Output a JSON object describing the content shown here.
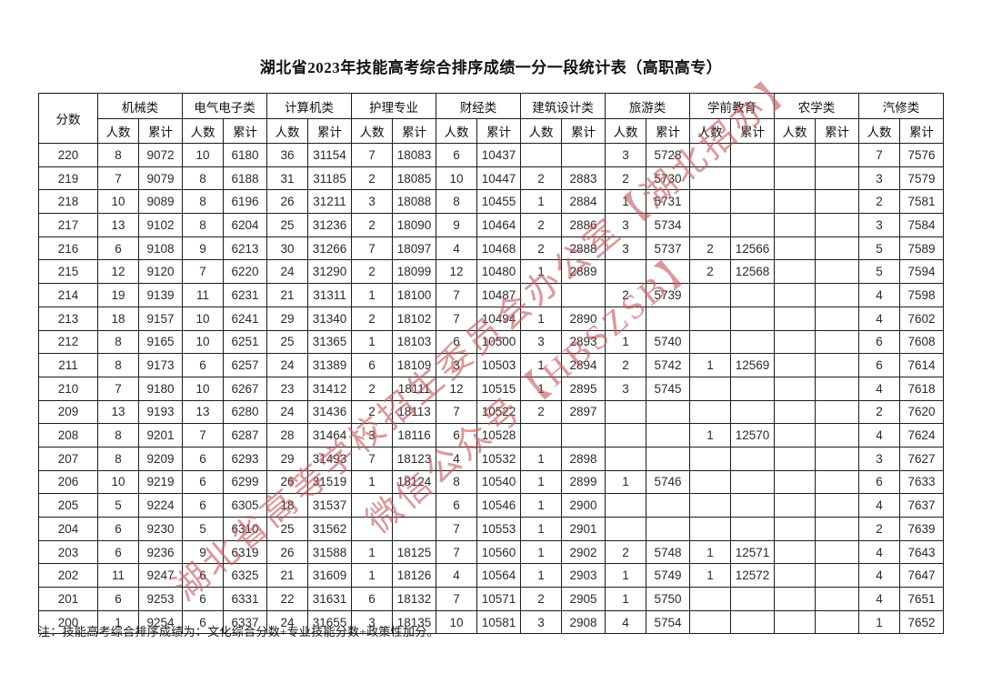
{
  "title": "湖北省2023年技能高考综合排序成绩一分一段统计表（高职高专）",
  "note": "注：技能高考综合排序成绩为：文化综合分数+专业技能分数+政策性加分。",
  "watermark": {
    "line1": "湖北省高等学校招生委员会办公室【湖北招办】",
    "line2": "微信公众号【HBSZSB】",
    "color": "#c4575a"
  },
  "table": {
    "score_header": "分数",
    "categories": [
      "机械类",
      "电气电子类",
      "计算机类",
      "护理专业",
      "财经类",
      "建筑设计类",
      "旅游类",
      "学前教育",
      "农学类",
      "汽修类"
    ],
    "subheaders": {
      "count": "人数",
      "cumulative": "累计"
    },
    "rows": [
      {
        "score": "220",
        "v": [
          "8",
          "9072",
          "10",
          "6180",
          "36",
          "31154",
          "7",
          "18083",
          "6",
          "10437",
          "",
          "",
          "3",
          "5728",
          "",
          "",
          "",
          "",
          "7",
          "7576"
        ]
      },
      {
        "score": "219",
        "v": [
          "7",
          "9079",
          "8",
          "6188",
          "31",
          "31185",
          "2",
          "18085",
          "10",
          "10447",
          "2",
          "2883",
          "2",
          "5730",
          "",
          "",
          "",
          "",
          "3",
          "7579"
        ]
      },
      {
        "score": "218",
        "v": [
          "10",
          "9089",
          "8",
          "6196",
          "26",
          "31211",
          "3",
          "18088",
          "8",
          "10455",
          "1",
          "2884",
          "1",
          "5731",
          "",
          "",
          "",
          "",
          "2",
          "7581"
        ]
      },
      {
        "score": "217",
        "v": [
          "13",
          "9102",
          "8",
          "6204",
          "25",
          "31236",
          "2",
          "18090",
          "9",
          "10464",
          "2",
          "2886",
          "3",
          "5734",
          "",
          "",
          "",
          "",
          "3",
          "7584"
        ]
      },
      {
        "score": "216",
        "v": [
          "6",
          "9108",
          "9",
          "6213",
          "30",
          "31266",
          "7",
          "18097",
          "4",
          "10468",
          "2",
          "2888",
          "3",
          "5737",
          "2",
          "12566",
          "",
          "",
          "5",
          "7589"
        ]
      },
      {
        "score": "215",
        "v": [
          "12",
          "9120",
          "7",
          "6220",
          "24",
          "31290",
          "2",
          "18099",
          "12",
          "10480",
          "1",
          "2889",
          "",
          "",
          "2",
          "12568",
          "",
          "",
          "5",
          "7594"
        ]
      },
      {
        "score": "214",
        "v": [
          "19",
          "9139",
          "11",
          "6231",
          "21",
          "31311",
          "1",
          "18100",
          "7",
          "10487",
          "",
          "",
          "2",
          "5739",
          "",
          "",
          "",
          "",
          "4",
          "7598"
        ]
      },
      {
        "score": "213",
        "v": [
          "18",
          "9157",
          "10",
          "6241",
          "29",
          "31340",
          "2",
          "18102",
          "7",
          "10494",
          "1",
          "2890",
          "",
          "",
          "",
          "",
          "",
          "",
          "4",
          "7602"
        ]
      },
      {
        "score": "212",
        "v": [
          "8",
          "9165",
          "10",
          "6251",
          "25",
          "31365",
          "1",
          "18103",
          "6",
          "10500",
          "3",
          "2893",
          "1",
          "5740",
          "",
          "",
          "",
          "",
          "6",
          "7608"
        ]
      },
      {
        "score": "211",
        "v": [
          "8",
          "9173",
          "6",
          "6257",
          "24",
          "31389",
          "6",
          "18109",
          "3",
          "10503",
          "1",
          "2894",
          "2",
          "5742",
          "1",
          "12569",
          "",
          "",
          "6",
          "7614"
        ]
      },
      {
        "score": "210",
        "v": [
          "7",
          "9180",
          "10",
          "6267",
          "23",
          "31412",
          "2",
          "18111",
          "12",
          "10515",
          "1",
          "2895",
          "3",
          "5745",
          "",
          "",
          "",
          "",
          "4",
          "7618"
        ]
      },
      {
        "score": "209",
        "v": [
          "13",
          "9193",
          "13",
          "6280",
          "24",
          "31436",
          "2",
          "18113",
          "7",
          "10522",
          "2",
          "2897",
          "",
          "",
          "",
          "",
          "",
          "",
          "2",
          "7620"
        ]
      },
      {
        "score": "208",
        "v": [
          "8",
          "9201",
          "7",
          "6287",
          "28",
          "31464",
          "3",
          "18116",
          "6",
          "10528",
          "",
          "",
          "",
          "",
          "1",
          "12570",
          "",
          "",
          "4",
          "7624"
        ]
      },
      {
        "score": "207",
        "v": [
          "8",
          "9209",
          "6",
          "6293",
          "29",
          "31493",
          "7",
          "18123",
          "4",
          "10532",
          "1",
          "2898",
          "",
          "",
          "",
          "",
          "",
          "",
          "3",
          "7627"
        ]
      },
      {
        "score": "206",
        "v": [
          "10",
          "9219",
          "6",
          "6299",
          "26",
          "31519",
          "1",
          "18124",
          "8",
          "10540",
          "1",
          "2899",
          "1",
          "5746",
          "",
          "",
          "",
          "",
          "6",
          "7633"
        ]
      },
      {
        "score": "205",
        "v": [
          "5",
          "9224",
          "6",
          "6305",
          "18",
          "31537",
          "",
          "",
          "6",
          "10546",
          "1",
          "2900",
          "",
          "",
          "",
          "",
          "",
          "",
          "4",
          "7637"
        ]
      },
      {
        "score": "204",
        "v": [
          "6",
          "9230",
          "5",
          "6310",
          "25",
          "31562",
          "",
          "",
          "7",
          "10553",
          "1",
          "2901",
          "",
          "",
          "",
          "",
          "",
          "",
          "2",
          "7639"
        ]
      },
      {
        "score": "203",
        "v": [
          "6",
          "9236",
          "9",
          "6319",
          "26",
          "31588",
          "1",
          "18125",
          "7",
          "10560",
          "1",
          "2902",
          "2",
          "5748",
          "1",
          "12571",
          "",
          "",
          "4",
          "7643"
        ]
      },
      {
        "score": "202",
        "v": [
          "11",
          "9247",
          "6",
          "6325",
          "21",
          "31609",
          "1",
          "18126",
          "4",
          "10564",
          "1",
          "2903",
          "1",
          "5749",
          "1",
          "12572",
          "",
          "",
          "4",
          "7647"
        ]
      },
      {
        "score": "201",
        "v": [
          "6",
          "9253",
          "6",
          "6331",
          "22",
          "31631",
          "6",
          "18132",
          "7",
          "10571",
          "2",
          "2905",
          "1",
          "5750",
          "",
          "",
          "",
          "",
          "4",
          "7651"
        ]
      },
      {
        "score": "200",
        "v": [
          "1",
          "9254",
          "6",
          "6337",
          "24",
          "31655",
          "3",
          "18135",
          "10",
          "10581",
          "3",
          "2908",
          "4",
          "5754",
          "",
          "",
          "",
          "",
          "1",
          "7652"
        ]
      }
    ]
  }
}
